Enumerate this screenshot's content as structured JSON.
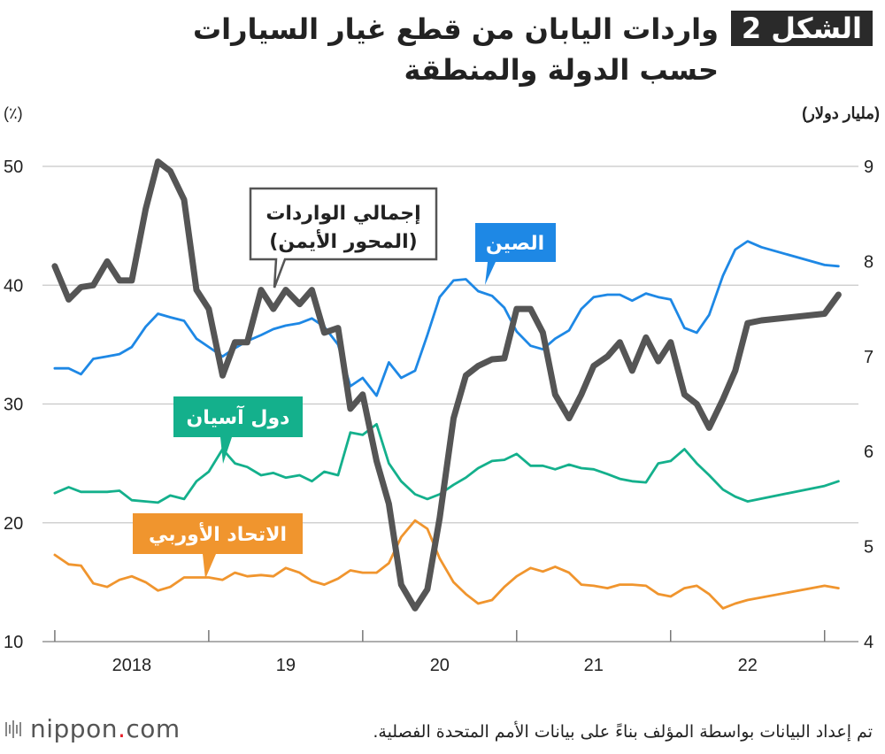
{
  "header": {
    "figure_label": "الشكل 2",
    "title": "واردات اليابان من قطع غيار السيارات حسب الدولة والمنطقة"
  },
  "footer": {
    "source": "تم إعداد البيانات بواسطة المؤلف بناءً على بيانات الأمم المتحدة الفصلية.",
    "logo_name": "nippon",
    "logo_dot": ".",
    "logo_suffix": "com",
    "logo_icon": "nippon-logo-icon"
  },
  "colors": {
    "china": "#1e88e5",
    "asean": "#14b08c",
    "eu": "#f0952e",
    "total": "#555555",
    "grid": "#c8c8c8",
    "figure_badge": "#2a2a2a"
  },
  "chart_data": {
    "type": "line",
    "left_axis": {
      "label": "(٪)",
      "ticks": [
        "10",
        "20",
        "30",
        "40",
        "50"
      ],
      "range": [
        10,
        50
      ]
    },
    "right_axis": {
      "label": "(مليار دولار)",
      "ticks": [
        "4",
        "5",
        "6",
        "7",
        "8",
        "9"
      ],
      "range": [
        4,
        9
      ]
    },
    "x_axis": {
      "tick_labels": [
        "2018",
        "19",
        "20",
        "21",
        "22"
      ],
      "range": [
        2017.5,
        2022.8
      ]
    },
    "grid": "horizontal",
    "series": [
      {
        "name": "الصين",
        "axis": "left",
        "color_key": "china",
        "x": [
          2017.58,
          2017.67,
          2017.75,
          2017.83,
          2017.92,
          2018.0,
          2018.08,
          2018.17,
          2018.25,
          2018.33,
          2018.42,
          2018.5,
          2018.58,
          2018.67,
          2018.75,
          2018.83,
          2018.92,
          2019.0,
          2019.08,
          2019.17,
          2019.25,
          2019.33,
          2019.42,
          2019.5,
          2019.58,
          2019.67,
          2019.75,
          2019.83,
          2019.92,
          2020.0,
          2020.08,
          2020.17,
          2020.25,
          2020.33,
          2020.42,
          2020.5,
          2020.58,
          2020.67,
          2020.75,
          2020.83,
          2020.92,
          2021.0,
          2021.08,
          2021.17,
          2021.25,
          2021.33,
          2021.42,
          2021.5,
          2021.58,
          2021.67,
          2021.75,
          2021.83,
          2021.92,
          2022.0,
          2022.08,
          2022.17,
          2022.58,
          2022.67
        ],
        "values": [
          33.0,
          33.0,
          32.5,
          33.8,
          34.0,
          34.2,
          34.8,
          36.5,
          37.6,
          37.3,
          37.0,
          35.5,
          34.8,
          34.0,
          34.7,
          35.3,
          35.8,
          36.3,
          36.6,
          36.8,
          37.2,
          36.5,
          35.0,
          31.5,
          32.2,
          30.7,
          33.5,
          32.2,
          32.8,
          35.8,
          39.0,
          40.4,
          40.5,
          39.5,
          39.1,
          38.1,
          36.1,
          34.9,
          34.6,
          35.5,
          36.2,
          38.0,
          39.0,
          39.2,
          39.2,
          38.7,
          39.3,
          39.0,
          38.8,
          36.4,
          36.0,
          37.5,
          40.8,
          43.0,
          43.7,
          43.2,
          41.7,
          41.6
        ]
      },
      {
        "name": "دول آسيان",
        "axis": "left",
        "color_key": "asean",
        "x": [
          2017.58,
          2017.67,
          2017.75,
          2017.83,
          2017.92,
          2018.0,
          2018.08,
          2018.17,
          2018.25,
          2018.33,
          2018.42,
          2018.5,
          2018.58,
          2018.67,
          2018.75,
          2018.83,
          2018.92,
          2019.0,
          2019.08,
          2019.17,
          2019.25,
          2019.33,
          2019.42,
          2019.5,
          2019.58,
          2019.67,
          2019.75,
          2019.83,
          2019.92,
          2020.0,
          2020.08,
          2020.17,
          2020.25,
          2020.33,
          2020.42,
          2020.5,
          2020.58,
          2020.67,
          2020.75,
          2020.83,
          2020.92,
          2021.0,
          2021.08,
          2021.17,
          2021.25,
          2021.33,
          2021.42,
          2021.5,
          2021.58,
          2021.67,
          2021.75,
          2021.83,
          2021.92,
          2022.0,
          2022.08,
          2022.58,
          2022.67
        ],
        "values": [
          22.5,
          23.0,
          22.6,
          22.6,
          22.6,
          22.7,
          21.9,
          21.8,
          21.7,
          22.3,
          22.0,
          23.5,
          24.3,
          26.2,
          25.0,
          24.7,
          24.0,
          24.2,
          23.8,
          24.0,
          23.5,
          24.3,
          24.0,
          27.6,
          27.4,
          28.3,
          25.0,
          23.5,
          22.4,
          22.0,
          22.4,
          23.2,
          23.8,
          24.6,
          25.2,
          25.3,
          25.8,
          24.8,
          24.8,
          24.5,
          24.9,
          24.6,
          24.5,
          24.1,
          23.7,
          23.5,
          23.4,
          25.0,
          25.2,
          26.2,
          25.0,
          24.0,
          22.8,
          22.2,
          21.8,
          23.1,
          23.5
        ]
      },
      {
        "name": "الاتحاد الأوربي",
        "axis": "left",
        "color_key": "eu",
        "x": [
          2017.58,
          2017.67,
          2017.75,
          2017.83,
          2017.92,
          2018.0,
          2018.08,
          2018.17,
          2018.25,
          2018.33,
          2018.42,
          2018.5,
          2018.58,
          2018.67,
          2018.75,
          2018.83,
          2018.92,
          2019.0,
          2019.08,
          2019.17,
          2019.25,
          2019.33,
          2019.42,
          2019.5,
          2019.58,
          2019.67,
          2019.75,
          2019.83,
          2019.92,
          2020.0,
          2020.08,
          2020.17,
          2020.25,
          2020.33,
          2020.42,
          2020.5,
          2020.58,
          2020.67,
          2020.75,
          2020.83,
          2020.92,
          2021.0,
          2021.08,
          2021.17,
          2021.25,
          2021.33,
          2021.42,
          2021.5,
          2021.58,
          2021.67,
          2021.75,
          2021.83,
          2021.92,
          2022.0,
          2022.08,
          2022.58,
          2022.67
        ],
        "values": [
          17.3,
          16.5,
          16.4,
          14.9,
          14.6,
          15.2,
          15.5,
          15.0,
          14.3,
          14.6,
          15.4,
          15.4,
          15.4,
          15.2,
          15.8,
          15.5,
          15.6,
          15.5,
          16.2,
          15.8,
          15.1,
          14.8,
          15.3,
          16.0,
          15.8,
          15.8,
          16.6,
          18.8,
          20.2,
          19.5,
          17.0,
          15.0,
          14.0,
          13.2,
          13.5,
          14.6,
          15.5,
          16.2,
          15.9,
          16.3,
          15.8,
          14.8,
          14.7,
          14.5,
          14.8,
          14.8,
          14.7,
          14.0,
          13.8,
          14.5,
          14.7,
          14.0,
          12.8,
          13.2,
          13.5,
          14.7,
          14.5
        ]
      },
      {
        "name": "إجمالي الواردات (المحور الأيمن)",
        "axis": "right",
        "color_key": "total",
        "x": [
          2017.58,
          2017.67,
          2017.75,
          2017.83,
          2017.92,
          2018.0,
          2018.08,
          2018.17,
          2018.25,
          2018.33,
          2018.42,
          2018.5,
          2018.58,
          2018.67,
          2018.75,
          2018.83,
          2018.92,
          2019.0,
          2019.08,
          2019.17,
          2019.25,
          2019.33,
          2019.42,
          2019.5,
          2019.58,
          2019.67,
          2019.75,
          2019.83,
          2019.92,
          2020.0,
          2020.08,
          2020.17,
          2020.25,
          2020.33,
          2020.42,
          2020.5,
          2020.58,
          2020.67,
          2020.75,
          2020.83,
          2020.92,
          2021.0,
          2021.08,
          2021.17,
          2021.25,
          2021.33,
          2021.42,
          2021.5,
          2021.58,
          2021.67,
          2021.75,
          2021.83,
          2021.92,
          2022.0,
          2022.08,
          2022.17,
          2022.58,
          2022.67
        ],
        "values": [
          7.95,
          7.6,
          7.73,
          7.75,
          8.0,
          7.8,
          7.8,
          8.55,
          9.05,
          8.95,
          8.65,
          7.7,
          7.5,
          6.8,
          7.15,
          7.15,
          7.7,
          7.5,
          7.7,
          7.55,
          7.7,
          7.25,
          7.3,
          6.45,
          6.6,
          5.9,
          5.45,
          4.6,
          4.35,
          4.55,
          5.3,
          6.35,
          6.8,
          6.9,
          6.97,
          6.98,
          7.5,
          7.5,
          7.25,
          6.6,
          6.35,
          6.6,
          6.9,
          7.0,
          7.15,
          6.85,
          7.2,
          6.95,
          7.15,
          6.6,
          6.5,
          6.25,
          6.55,
          6.85,
          7.35,
          7.38,
          7.45,
          7.65
        ]
      }
    ],
    "annotations": [
      {
        "target": "الصين",
        "text": "الصين"
      },
      {
        "target": "إجمالي الواردات (المحور الأيمن)",
        "lines": [
          "إجمالي الواردات",
          "(المحور الأيمن)"
        ]
      },
      {
        "target": "دول آسيان",
        "text": "دول آسيان"
      },
      {
        "target": "الاتحاد الأوربي",
        "text": "الاتحاد الأوربي"
      }
    ]
  }
}
